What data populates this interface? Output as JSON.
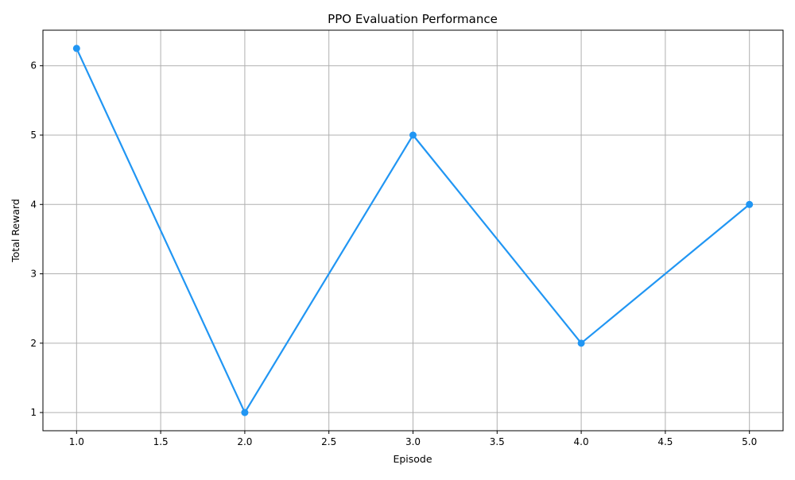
{
  "chart_data": {
    "type": "line",
    "title": "PPO Evaluation Performance",
    "xlabel": "Episode",
    "ylabel": "Total Reward",
    "x": [
      1,
      2,
      3,
      4,
      5
    ],
    "series": [
      {
        "values": [
          6.25,
          1,
          5,
          2,
          4
        ],
        "color": "#2196f3",
        "marker": "circle"
      }
    ],
    "xlim": [
      0.8,
      5.2
    ],
    "ylim": [
      0.7375,
      6.5125
    ],
    "x_ticks": [
      "1.0",
      "1.5",
      "2.0",
      "2.5",
      "3.0",
      "3.5",
      "4.0",
      "4.5",
      "5.0"
    ],
    "y_ticks": [
      "1",
      "2",
      "3",
      "4",
      "5",
      "6"
    ],
    "grid": true,
    "legend": "none"
  }
}
